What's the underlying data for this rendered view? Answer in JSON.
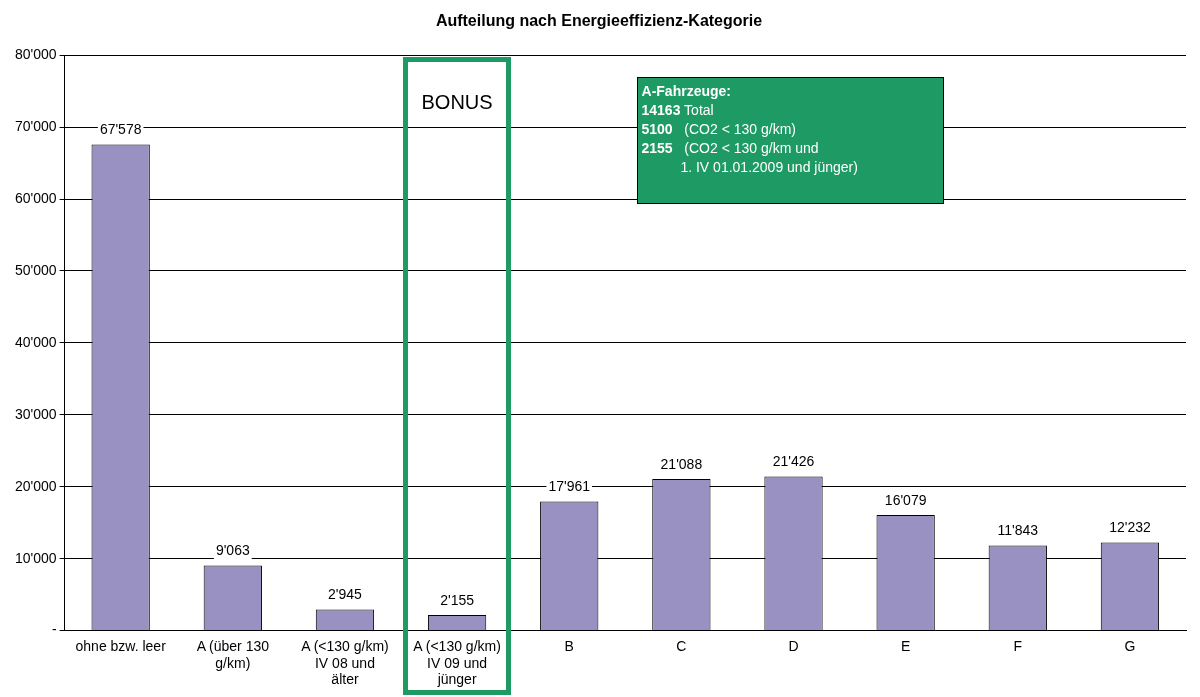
{
  "chart_data": {
    "type": "bar",
    "title": "Aufteilung nach Energieeffizienz-Kategorie",
    "categories": [
      "ohne bzw. leer",
      "A (über 130 g/km)",
      "A (<130 g/km) IV 08 und älter",
      "A (<130 g/km) IV 09 und jünger",
      "B",
      "C",
      "D",
      "E",
      "F",
      "G"
    ],
    "values": [
      67578,
      9063,
      2945,
      2155,
      17961,
      21088,
      21426,
      16079,
      11843,
      12232
    ],
    "value_labels": [
      "67'578",
      "9'063",
      "2'945",
      "2'155",
      "17'961",
      "21'088",
      "21'426",
      "16'079",
      "11'843",
      "12'232"
    ],
    "color": "#9891c2",
    "ylim": [
      0,
      80000
    ],
    "yticks": [
      {
        "value": 0,
        "label": "-"
      },
      {
        "value": 10000,
        "label": "10'000"
      },
      {
        "value": 20000,
        "label": "20'000"
      },
      {
        "value": 30000,
        "label": "30'000"
      },
      {
        "value": 40000,
        "label": "40'000"
      },
      {
        "value": 50000,
        "label": "50'000"
      },
      {
        "value": 60000,
        "label": "60'000"
      },
      {
        "value": 70000,
        "label": "70'000"
      },
      {
        "value": 80000,
        "label": "80'000"
      }
    ],
    "grid": "y",
    "legend": false,
    "annotations": [
      "BONUS",
      "A-Fahrzeuge:\n14163 Total\n5100   (CO2 < 130 g/km)\n2155   (CO2 < 130 g/km und\n          1. IV 01.01.2009 und jünger)"
    ]
  }
}
